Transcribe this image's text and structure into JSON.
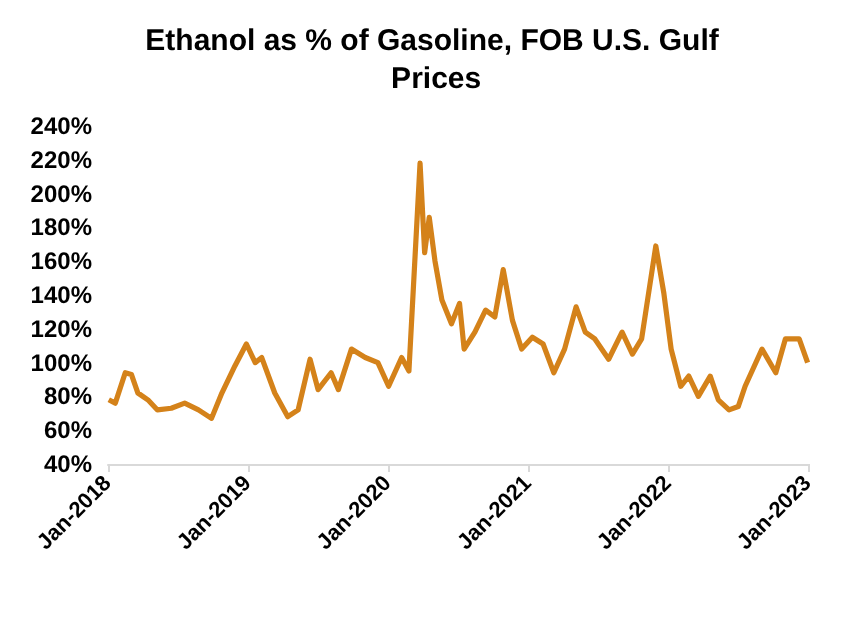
{
  "chart_data": {
    "type": "line",
    "title": "Ethanol as % of Gasoline, FOB U.S. Gulf Prices",
    "x": [
      "2018-01-03",
      "2018-01-20",
      "2018-02-15",
      "2018-03-03",
      "2018-03-20",
      "2018-04-15",
      "2018-05-10",
      "2018-06-15",
      "2018-07-20",
      "2018-08-25",
      "2018-09-28",
      "2018-10-25",
      "2018-11-28",
      "2018-12-28",
      "2019-01-20",
      "2019-02-06",
      "2019-03-12",
      "2019-04-15",
      "2019-05-12",
      "2019-06-12",
      "2019-07-03",
      "2019-08-06",
      "2019-08-25",
      "2019-09-28",
      "2019-11-03",
      "2019-12-06",
      "2020-01-03",
      "2020-02-06",
      "2020-02-25",
      "2020-03-25",
      "2020-04-06",
      "2020-04-18",
      "2020-05-03",
      "2020-05-21",
      "2020-06-15",
      "2020-07-06",
      "2020-07-18",
      "2020-08-15",
      "2020-09-12",
      "2020-10-06",
      "2020-10-28",
      "2020-11-21",
      "2020-12-15",
      "2021-01-12",
      "2021-02-09",
      "2021-03-09",
      "2021-04-06",
      "2021-05-06",
      "2021-05-30",
      "2021-06-24",
      "2021-07-30",
      "2021-09-03",
      "2021-09-30",
      "2021-10-24",
      "2021-11-30",
      "2021-12-21",
      "2022-01-09",
      "2022-02-03",
      "2022-02-24",
      "2022-03-21",
      "2022-04-21",
      "2022-05-12",
      "2022-06-09",
      "2022-07-03",
      "2022-07-21",
      "2022-09-03",
      "2022-10-09",
      "2022-11-03",
      "2022-12-09",
      "2022-12-31"
    ],
    "series": [
      {
        "color": "#d4821a",
        "values": [
          78,
          76,
          94,
          93,
          82,
          78,
          72,
          73,
          76,
          72,
          67,
          82,
          98,
          111,
          100,
          103,
          82,
          68,
          72,
          102,
          84,
          94,
          84,
          108,
          103,
          100,
          86,
          103,
          95,
          218,
          165,
          186,
          160,
          137,
          123,
          135,
          108,
          118,
          131,
          127,
          155,
          125,
          108,
          115,
          111,
          94,
          108,
          133,
          118,
          114,
          102,
          118,
          105,
          114,
          169,
          141,
          108,
          86,
          92,
          80,
          92,
          78,
          72,
          74,
          86,
          108,
          94,
          114,
          114,
          100
        ]
      }
    ],
    "xlim": [
      "2018-01-01",
      "2023-01-01"
    ],
    "xticks": [
      {
        "value": "2018-01-01",
        "label": "Jan-2018"
      },
      {
        "value": "2019-01-01",
        "label": "Jan-2019"
      },
      {
        "value": "2020-01-01",
        "label": "Jan-2020"
      },
      {
        "value": "2021-01-01",
        "label": "Jan-2021"
      },
      {
        "value": "2022-01-01",
        "label": "Jan-2022"
      },
      {
        "value": "2023-01-01",
        "label": "Jan-2023"
      }
    ],
    "ylim": [
      40,
      240
    ],
    "yticks": [
      {
        "value": 40,
        "label": "40%"
      },
      {
        "value": 60,
        "label": "60%"
      },
      {
        "value": 80,
        "label": "80%"
      },
      {
        "value": 100,
        "label": "100%"
      },
      {
        "value": 120,
        "label": "120%"
      },
      {
        "value": 140,
        "label": "140%"
      },
      {
        "value": 160,
        "label": "160%"
      },
      {
        "value": 180,
        "label": "180%"
      },
      {
        "value": 200,
        "label": "200%"
      },
      {
        "value": 220,
        "label": "220%"
      },
      {
        "value": 240,
        "label": "240%"
      }
    ],
    "grid": false,
    "marker": "none",
    "line_style": "solid"
  }
}
